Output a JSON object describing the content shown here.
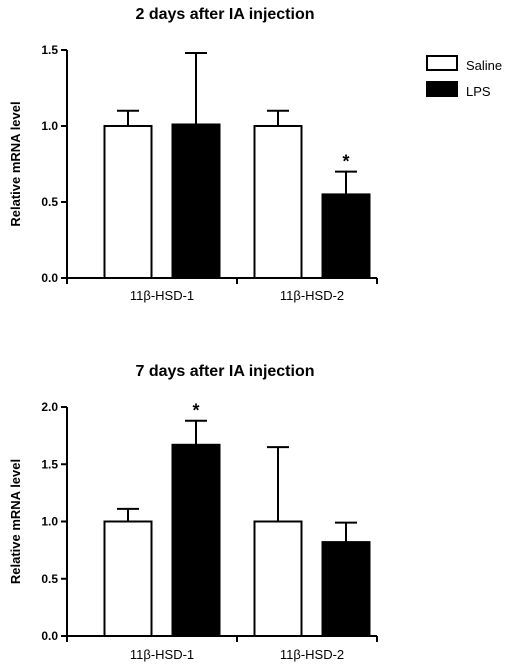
{
  "legend": {
    "items": [
      {
        "label": "Saline",
        "fill": "#ffffff",
        "stroke": "#000000"
      },
      {
        "label": "LPS",
        "fill": "#000000",
        "stroke": "#000000"
      }
    ],
    "placement": "top-right"
  },
  "chart_data": [
    {
      "type": "bar",
      "title": "2 days after IA injection",
      "ylabel": "Relative mRNA level",
      "xlabel": "",
      "ylim": [
        0,
        1.5
      ],
      "yticks": [
        "0.0",
        "0.5",
        "1.0",
        "1.5"
      ],
      "categories": [
        "11β-HSD-1",
        "11β-HSD-2"
      ],
      "series": [
        {
          "name": "Saline",
          "color": "#ffffff",
          "values": [
            1.0,
            1.0
          ],
          "errors": [
            0.1,
            0.1
          ]
        },
        {
          "name": "LPS",
          "color": "#000000",
          "values": [
            1.01,
            0.55
          ],
          "errors": [
            0.47,
            0.15
          ]
        }
      ],
      "annotations": [
        {
          "text": "*",
          "category": 1,
          "series": 1
        }
      ],
      "grid": false
    },
    {
      "type": "bar",
      "title": "7 days after IA injection",
      "ylabel": "Relative mRNA level",
      "xlabel": "",
      "ylim": [
        0,
        2.0
      ],
      "yticks": [
        "0.0",
        "0.5",
        "1.0",
        "1.5",
        "2.0"
      ],
      "categories": [
        "11β-HSD-1",
        "11β-HSD-2"
      ],
      "series": [
        {
          "name": "Saline",
          "color": "#ffffff",
          "values": [
            1.0,
            1.0
          ],
          "errors": [
            0.11,
            0.65
          ]
        },
        {
          "name": "LPS",
          "color": "#000000",
          "values": [
            1.67,
            0.82
          ],
          "errors": [
            0.21,
            0.17
          ]
        }
      ],
      "annotations": [
        {
          "text": "*",
          "category": 0,
          "series": 1
        }
      ],
      "grid": false
    }
  ]
}
